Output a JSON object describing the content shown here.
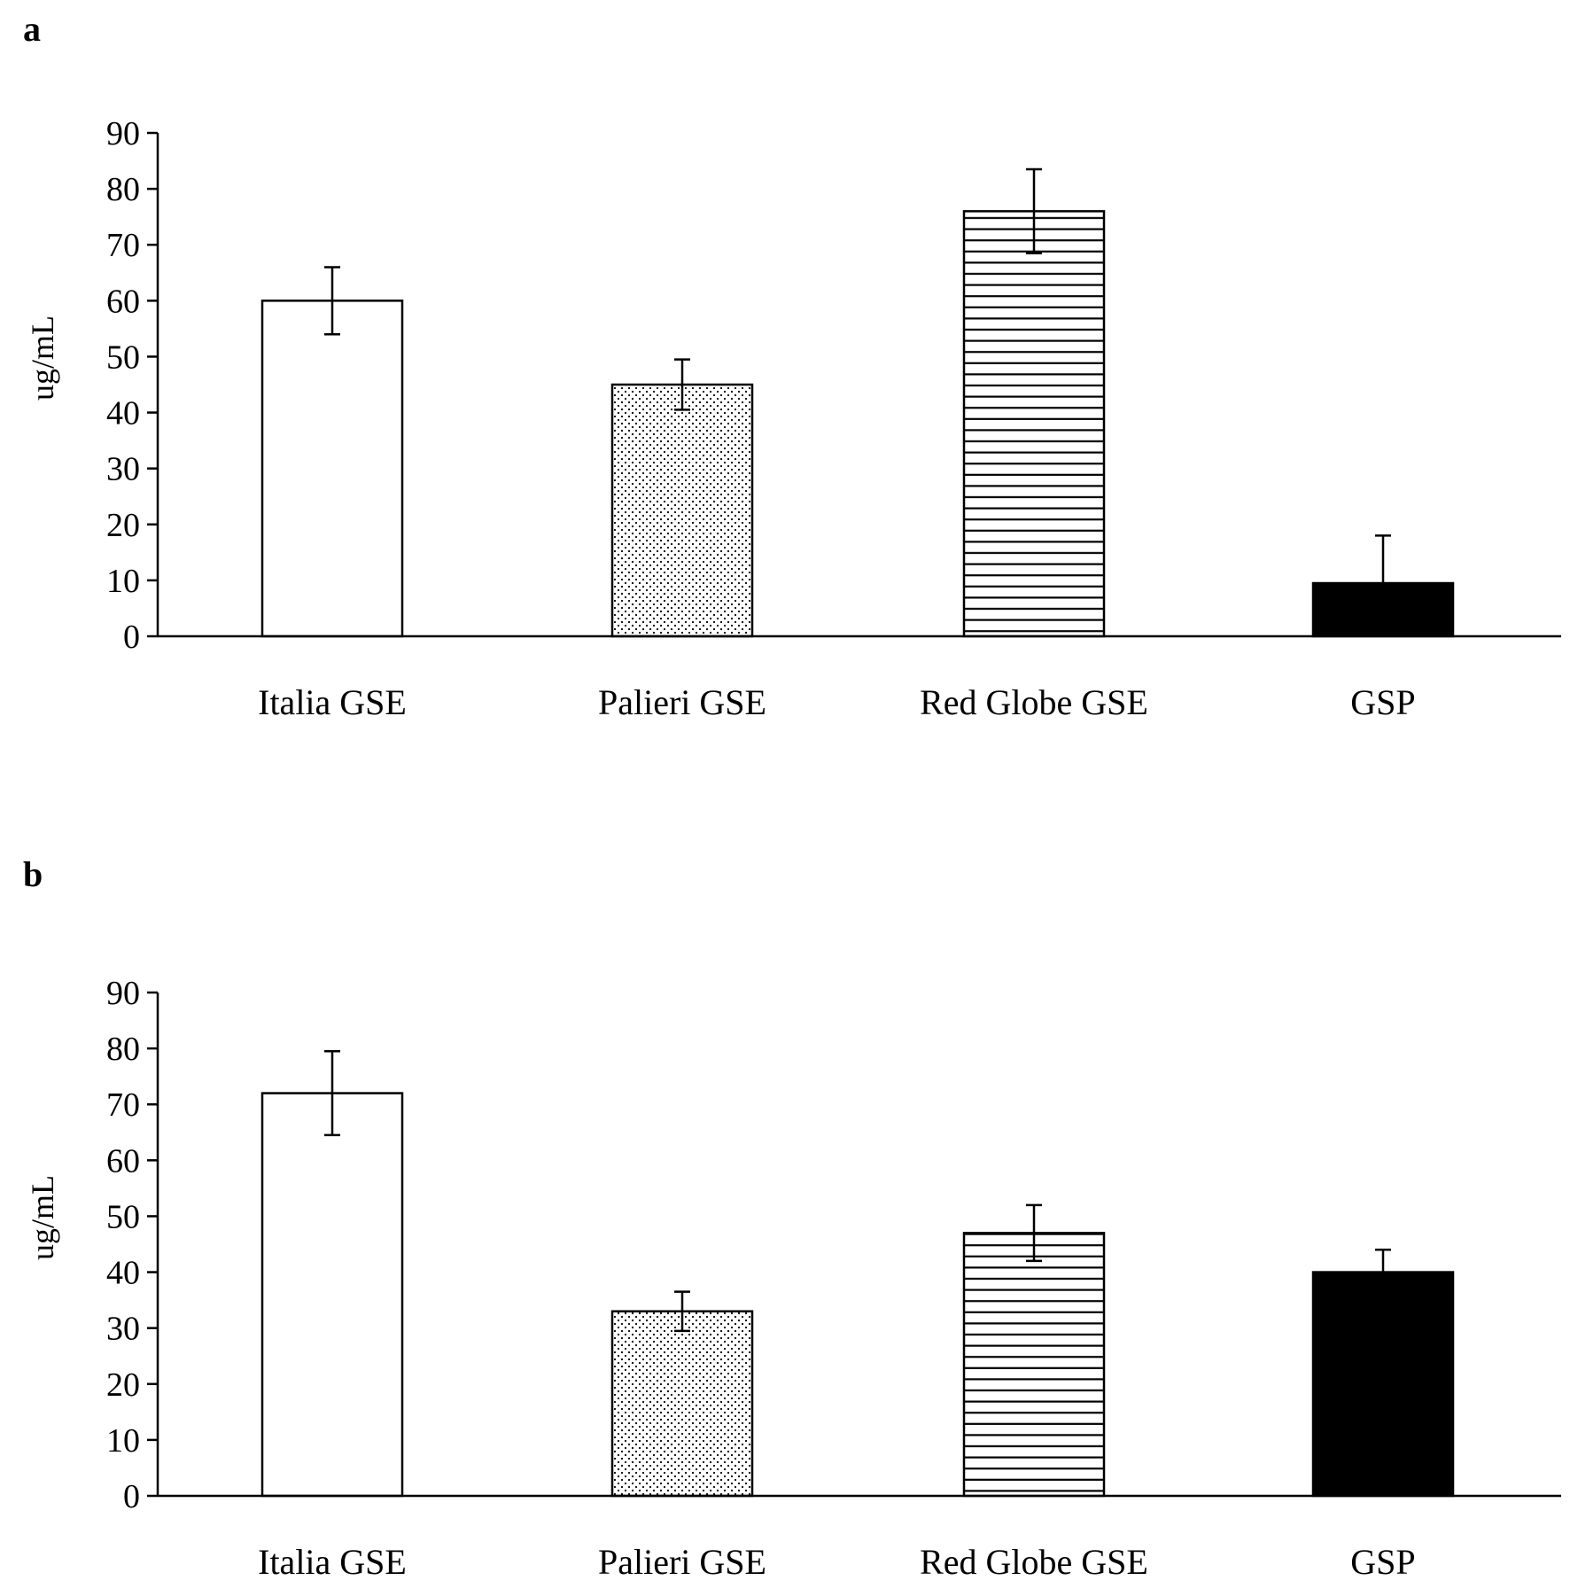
{
  "chart_data": [
    {
      "type": "bar",
      "panel_label": "a",
      "title": "",
      "xlabel": "",
      "ylabel": "ug/mL",
      "ylim": [
        0,
        90
      ],
      "yticks": [
        "0",
        "10",
        "20",
        "30",
        "40",
        "50",
        "60",
        "70",
        "80",
        "90"
      ],
      "categories": [
        "Italia GSE",
        "Palieri GSE",
        "Red Globe GSE",
        "GSP"
      ],
      "values": [
        60,
        45,
        76,
        9.5
      ],
      "errors": [
        6,
        4.5,
        7.5,
        8.5
      ],
      "patterns": [
        "white",
        "dots",
        "hlines",
        "black"
      ],
      "grid": false
    },
    {
      "type": "bar",
      "panel_label": "b",
      "title": "",
      "xlabel": "",
      "ylabel": "ug/mL",
      "ylim": [
        0,
        90
      ],
      "yticks": [
        "0",
        "10",
        "20",
        "30",
        "40",
        "50",
        "60",
        "70",
        "80",
        "90"
      ],
      "categories": [
        "Italia GSE",
        "Palieri GSE",
        "Red Globe GSE",
        "GSP"
      ],
      "values": [
        72,
        33,
        47,
        40
      ],
      "errors": [
        7.5,
        3.5,
        5,
        4
      ],
      "patterns": [
        "white",
        "dots",
        "hlines",
        "black"
      ],
      "grid": false
    }
  ]
}
